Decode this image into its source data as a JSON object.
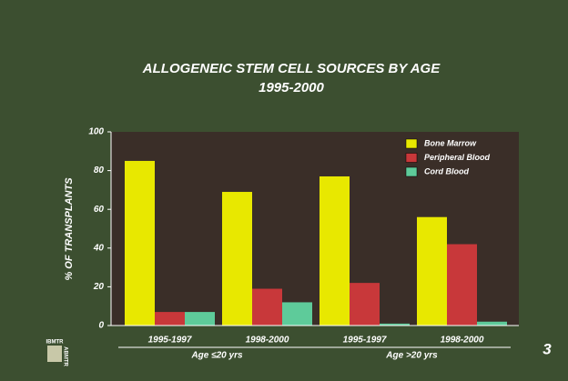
{
  "chart_data": {
    "type": "bar",
    "title": "ALLOGENEIC STEM CELL SOURCES BY AGE",
    "subtitle": "1995-2000",
    "y_label": "% OF TRANSPLANTS",
    "categories": [
      "1995-1997",
      "1998-2000",
      "1995-1997",
      "1998-2000"
    ],
    "group_labels": [
      "Age ≤20 yrs",
      "Age >20 yrs"
    ],
    "series": [
      {
        "name": "Bone Marrow",
        "color": "#e8e800",
        "values": [
          85,
          69,
          77,
          56
        ]
      },
      {
        "name": "Peripheral Blood",
        "color": "#c8383a",
        "values": [
          7,
          19,
          22,
          42
        ]
      },
      {
        "name": "Cord Blood",
        "color": "#5ecb9a",
        "values": [
          7,
          12,
          1,
          2
        ]
      }
    ],
    "ylim": [
      0,
      100
    ],
    "yticks": [
      0,
      20,
      40,
      60,
      80,
      100
    ],
    "legend": "upper-right",
    "page_number": "3",
    "logo": [
      "IBMTR",
      "ABMTR"
    ]
  }
}
